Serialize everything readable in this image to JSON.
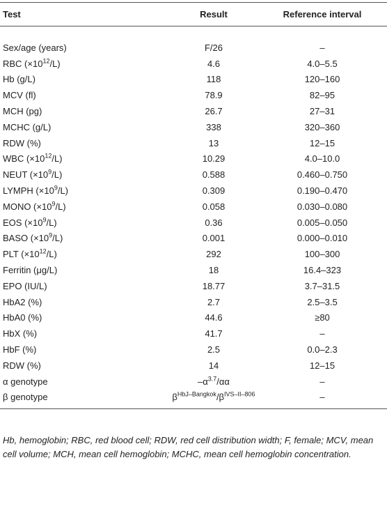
{
  "table": {
    "header": [
      "Test",
      "Result",
      "Reference interval"
    ],
    "rows": [
      [
        "Sex/age (years)",
        "F/26",
        "–"
      ],
      [
        [
          "RBC (×10",
          {
            "sup": "12"
          },
          "/L)"
        ],
        "4.6",
        "4.0–5.5"
      ],
      [
        "Hb (g/L)",
        "118",
        "120–160"
      ],
      [
        "MCV (fl)",
        "78.9",
        "82–95"
      ],
      [
        "MCH (pg)",
        "26.7",
        "27–31"
      ],
      [
        "MCHC (g/L)",
        "338",
        "320–360"
      ],
      [
        "RDW (%)",
        "13",
        "12–15"
      ],
      [
        [
          "WBC (×10",
          {
            "sup": "12"
          },
          "/L)"
        ],
        "10.29",
        "4.0–10.0"
      ],
      [
        [
          "NEUT (×10",
          {
            "sup": "9"
          },
          "/L)"
        ],
        "0.588",
        "0.460–0.750"
      ],
      [
        [
          "LYMPH (×10",
          {
            "sup": "9"
          },
          "/L)"
        ],
        "0.309",
        "0.190–0.470"
      ],
      [
        [
          "MONO (×10",
          {
            "sup": "9"
          },
          "/L)"
        ],
        "0.058",
        "0.030–0.080"
      ],
      [
        [
          "EOS (×10",
          {
            "sup": "9"
          },
          "/L)"
        ],
        "0.36",
        "0.005–0.050"
      ],
      [
        [
          "BASO (×10",
          {
            "sup": "9"
          },
          "/L)"
        ],
        "0.001",
        "0.000–0.010"
      ],
      [
        [
          "PLT (×10",
          {
            "sup": "12"
          },
          "/L)"
        ],
        "292",
        "100–300"
      ],
      [
        "Ferritin (μg/L)",
        "18",
        "16.4–323"
      ],
      [
        "EPO (IU/L)",
        "18.77",
        "3.7–31.5"
      ],
      [
        "HbA2 (%)",
        "2.7",
        "2.5–3.5"
      ],
      [
        "HbA0 (%)",
        "44.6",
        "≥80"
      ],
      [
        "HbX (%)",
        "41.7",
        "–"
      ],
      [
        "HbF (%)",
        "2.5",
        "0.0–2.3"
      ],
      [
        "RDW (%)",
        "14",
        "12–15"
      ],
      [
        "α genotype",
        [
          "–α",
          {
            "sup": "3.7"
          },
          "/αα"
        ],
        "–"
      ],
      [
        "β genotype",
        [
          "β",
          {
            "sup": "HbJ–Bangkok"
          },
          "/β",
          {
            "sup": "IVS–II–806"
          }
        ],
        "–"
      ]
    ]
  },
  "footnote": "Hb, hemoglobin; RBC, red blood cell; RDW, red cell distribution width; F, female; MCV, mean cell volume; MCH, mean cell hemoglobin; MCHC, mean cell hemoglobin concentration."
}
